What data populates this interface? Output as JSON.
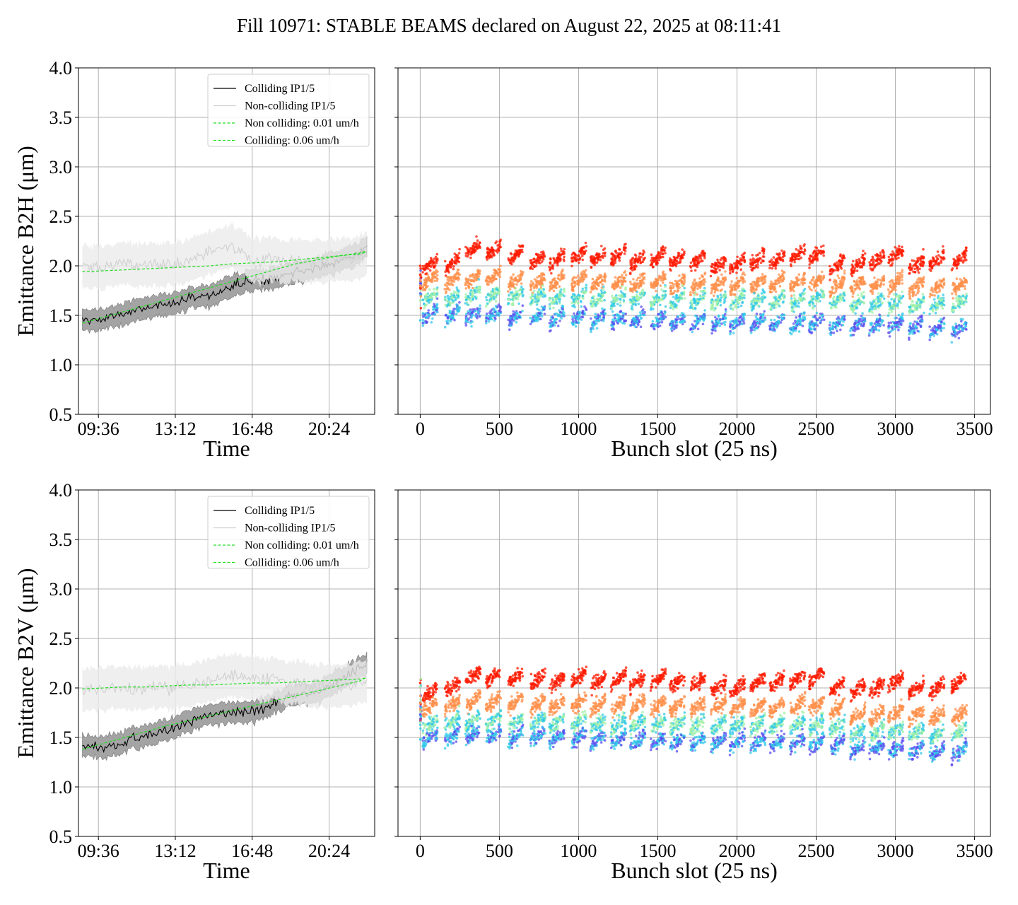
{
  "figure": {
    "title": "Fill 10971: STABLE BEAMS declared on August 22, 2025 at 08:11:41"
  },
  "chart_data": [
    {
      "id": "time-b2h",
      "type": "line",
      "ylabel": "Emittance B2H (μm)",
      "xlabel": "Time",
      "xlim": [
        "08:40",
        "22:32"
      ],
      "ylim": [
        0.5,
        4.0
      ],
      "yticks": [
        "0.5",
        "1.0",
        "1.5",
        "2.0",
        "2.5",
        "3.0",
        "3.5",
        "4.0"
      ],
      "xticks": [
        "09:36",
        "13:12",
        "16:48",
        "20:24"
      ],
      "grid": true,
      "legend_position": "top-right",
      "x": [
        "08:51",
        "09:50",
        "10:50",
        "11:50",
        "12:50",
        "13:50",
        "14:50",
        "15:50",
        "16:50",
        "17:50",
        "18:50",
        "19:50",
        "20:50",
        "21:50",
        "22:10"
      ],
      "series": [
        {
          "name": "Colliding IP1/5",
          "color": "#000000",
          "style": "solid",
          "band": "#a0a0a0",
          "values": [
            1.45,
            1.46,
            1.52,
            1.57,
            1.61,
            1.67,
            1.7,
            1.8,
            1.86,
            1.88,
            1.93,
            1.98,
            2.05,
            2.13,
            2.2
          ]
        },
        {
          "name": "Non-colliding IP1/5",
          "color": "#d0d0d0",
          "style": "solid",
          "band": "#ebebeb",
          "values": [
            1.98,
            1.98,
            2.02,
            2.0,
            2.02,
            2.05,
            2.12,
            2.2,
            2.08,
            2.05,
            2.05,
            2.05,
            2.05,
            2.08,
            2.14
          ]
        },
        {
          "name": "Non colliding: 0.01 um/h",
          "color": "#22dd22",
          "style": "dashed",
          "values": [
            1.94,
            1.95,
            1.96,
            1.97,
            1.98,
            1.99,
            2.0,
            2.02,
            2.03,
            2.04,
            2.06,
            2.08,
            2.1,
            2.12,
            2.14
          ]
        },
        {
          "name": "Colliding: 0.06 um/h",
          "color": "#22dd22",
          "style": "dashed",
          "values": [
            1.42,
            1.48,
            1.54,
            1.6,
            1.66,
            1.72,
            1.78,
            1.84,
            1.9,
            1.96,
            2.02,
            2.06,
            2.1,
            2.13,
            2.15
          ]
        }
      ]
    },
    {
      "id": "bunch-b2h",
      "type": "scatter",
      "xlabel": "Bunch slot (25 ns)",
      "xlim": [
        -140,
        3600
      ],
      "ylim": [
        0.5,
        4.0
      ],
      "xticks": [
        "0",
        "500",
        "1000",
        "1500",
        "2000",
        "2500",
        "3000",
        "3500"
      ],
      "grid": true,
      "colormap": "rainbow",
      "x": [
        0,
        60,
        200,
        330,
        460,
        600,
        740,
        860,
        1000,
        1120,
        1250,
        1370,
        1500,
        1620,
        1750,
        1880,
        2000,
        2130,
        2250,
        2380,
        2500,
        2630,
        2760,
        2880,
        3000,
        3130,
        3260,
        3400
      ],
      "series": [
        {
          "name": "",
          "values": [
            2.0,
            2.0,
            2.02,
            2.15,
            2.15,
            2.1,
            2.05,
            2.05,
            2.1,
            2.08,
            2.1,
            2.05,
            2.08,
            2.05,
            2.05,
            2.0,
            2.0,
            2.05,
            2.05,
            2.1,
            2.1,
            2.0,
            2.0,
            2.05,
            2.1,
            2.0,
            2.05,
            2.05
          ]
        },
        {
          "name": "",
          "values": [
            1.8,
            1.85,
            1.85,
            1.85,
            1.88,
            1.85,
            1.83,
            1.83,
            1.85,
            1.82,
            1.83,
            1.82,
            1.83,
            1.8,
            1.8,
            1.8,
            1.8,
            1.82,
            1.82,
            1.82,
            1.83,
            1.8,
            1.8,
            1.8,
            1.82,
            1.78,
            1.78,
            1.8
          ]
        },
        {
          "name": "",
          "values": [
            1.65,
            1.68,
            1.68,
            1.7,
            1.7,
            1.68,
            1.68,
            1.66,
            1.68,
            1.66,
            1.66,
            1.66,
            1.66,
            1.65,
            1.65,
            1.64,
            1.64,
            1.65,
            1.64,
            1.64,
            1.65,
            1.64,
            1.62,
            1.62,
            1.62,
            1.6,
            1.6,
            1.62
          ]
        },
        {
          "name": "",
          "values": [
            1.45,
            1.5,
            1.5,
            1.5,
            1.5,
            1.48,
            1.48,
            1.46,
            1.48,
            1.45,
            1.44,
            1.44,
            1.44,
            1.43,
            1.43,
            1.42,
            1.42,
            1.42,
            1.42,
            1.42,
            1.42,
            1.4,
            1.4,
            1.4,
            1.4,
            1.38,
            1.36,
            1.36
          ]
        }
      ]
    },
    {
      "id": "time-b2v",
      "type": "line",
      "ylabel": "Emittance B2V (μm)",
      "xlabel": "Time",
      "xlim": [
        "08:40",
        "22:32"
      ],
      "ylim": [
        0.5,
        4.0
      ],
      "yticks": [
        "0.5",
        "1.0",
        "1.5",
        "2.0",
        "2.5",
        "3.0",
        "3.5",
        "4.0"
      ],
      "xticks": [
        "09:36",
        "13:12",
        "16:48",
        "20:24"
      ],
      "grid": true,
      "legend_position": "top-right",
      "x": [
        "08:51",
        "09:50",
        "10:50",
        "11:50",
        "12:50",
        "13:50",
        "14:50",
        "15:50",
        "16:50",
        "17:50",
        "18:50",
        "19:50",
        "20:50",
        "21:50",
        "22:10"
      ],
      "series": [
        {
          "name": "Colliding IP1/5",
          "color": "#000000",
          "style": "solid",
          "band": "#a0a0a0",
          "values": [
            1.42,
            1.4,
            1.47,
            1.52,
            1.58,
            1.67,
            1.73,
            1.75,
            1.76,
            1.85,
            1.93,
            1.96,
            2.08,
            2.2,
            2.24
          ]
        },
        {
          "name": "Non-colliding IP1/5",
          "color": "#d0d0d0",
          "style": "solid",
          "band": "#ebebeb",
          "values": [
            1.98,
            2.0,
            2.0,
            2.0,
            2.01,
            2.02,
            2.08,
            2.12,
            2.1,
            2.08,
            2.05,
            2.03,
            2.02,
            2.05,
            2.08
          ]
        },
        {
          "name": "Non colliding: 0.01 um/h",
          "color": "#22dd22",
          "style": "dashed",
          "values": [
            1.99,
            2.0,
            2.01,
            2.01,
            2.02,
            2.03,
            2.03,
            2.04,
            2.05,
            2.05,
            2.06,
            2.07,
            2.08,
            2.09,
            2.1
          ]
        },
        {
          "name": "Colliding: 0.06 um/h",
          "color": "#22dd22",
          "style": "dashed",
          "values": [
            1.38,
            1.44,
            1.5,
            1.56,
            1.62,
            1.67,
            1.72,
            1.77,
            1.82,
            1.87,
            1.92,
            1.97,
            2.02,
            2.07,
            2.11
          ]
        }
      ]
    },
    {
      "id": "bunch-b2v",
      "type": "scatter",
      "xlabel": "Bunch slot (25 ns)",
      "xlim": [
        -140,
        3600
      ],
      "ylim": [
        0.5,
        4.0
      ],
      "xticks": [
        "0",
        "500",
        "1000",
        "1500",
        "2000",
        "2500",
        "3000",
        "3500"
      ],
      "grid": true,
      "colormap": "rainbow",
      "x": [
        0,
        60,
        200,
        330,
        460,
        600,
        740,
        860,
        1000,
        1120,
        1250,
        1370,
        1500,
        1620,
        1750,
        1880,
        2000,
        2130,
        2250,
        2380,
        2500,
        2630,
        2760,
        2880,
        3000,
        3130,
        3260,
        3400
      ],
      "series": [
        {
          "name": "",
          "values": [
            2.05,
            1.95,
            2.0,
            2.12,
            2.1,
            2.1,
            2.08,
            2.05,
            2.1,
            2.05,
            2.08,
            2.05,
            2.08,
            2.05,
            2.05,
            2.0,
            2.0,
            2.05,
            2.05,
            2.08,
            2.1,
            2.0,
            1.98,
            2.0,
            2.05,
            1.98,
            2.0,
            2.05
          ]
        },
        {
          "name": "",
          "values": [
            1.85,
            1.8,
            1.82,
            1.85,
            1.85,
            1.85,
            1.83,
            1.82,
            1.84,
            1.82,
            1.82,
            1.82,
            1.82,
            1.8,
            1.8,
            1.8,
            1.8,
            1.8,
            1.8,
            1.82,
            1.82,
            1.78,
            1.72,
            1.72,
            1.74,
            1.72,
            1.7,
            1.72
          ]
        },
        {
          "name": "",
          "values": [
            1.65,
            1.62,
            1.65,
            1.66,
            1.66,
            1.65,
            1.65,
            1.64,
            1.65,
            1.63,
            1.63,
            1.63,
            1.63,
            1.62,
            1.62,
            1.62,
            1.62,
            1.62,
            1.62,
            1.62,
            1.62,
            1.6,
            1.55,
            1.55,
            1.56,
            1.54,
            1.52,
            1.54
          ]
        },
        {
          "name": "",
          "values": [
            1.48,
            1.48,
            1.5,
            1.52,
            1.52,
            1.5,
            1.5,
            1.48,
            1.5,
            1.47,
            1.47,
            1.46,
            1.46,
            1.45,
            1.45,
            1.44,
            1.44,
            1.44,
            1.44,
            1.44,
            1.44,
            1.42,
            1.38,
            1.38,
            1.38,
            1.36,
            1.34,
            1.35
          ]
        }
      ]
    }
  ]
}
